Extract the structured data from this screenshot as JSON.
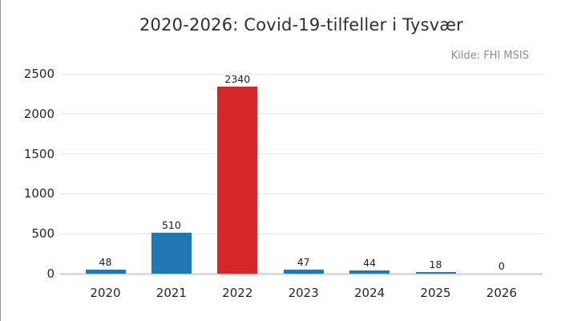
{
  "chart_data": {
    "type": "bar",
    "title": "2020-2026: Covid-19-tilfeller i Tysvær",
    "source": "Kilde: FHI MSIS",
    "categories": [
      "2020",
      "2021",
      "2022",
      "2023",
      "2024",
      "2025",
      "2026"
    ],
    "values": [
      48,
      510,
      2340,
      47,
      44,
      18,
      0
    ],
    "value_labels": [
      "48",
      "510",
      "2340",
      "47",
      "44",
      "18",
      "0"
    ],
    "bar_colors": [
      "#2177b4",
      "#2177b4",
      "#d62728",
      "#2177b4",
      "#2177b4",
      "#2177b4",
      "#2177b4"
    ],
    "highlight_index": 2,
    "yticks": [
      0,
      500,
      1000,
      1500,
      2000,
      2500
    ],
    "ylim": [
      0,
      2500
    ],
    "xlabel": "",
    "ylabel": "",
    "grid": "horizontal",
    "legend": "none",
    "value_labels_shown": true
  },
  "colors": {
    "bar_blue": "#2177b4",
    "bar_red": "#d62728",
    "grid_line": "#e9e9e9",
    "axis_line": "#dcdcdc",
    "title_text": "#2e2e2e",
    "tick_text": "#262626",
    "source_text": "#8c8c8c",
    "background": "#ffffff"
  }
}
